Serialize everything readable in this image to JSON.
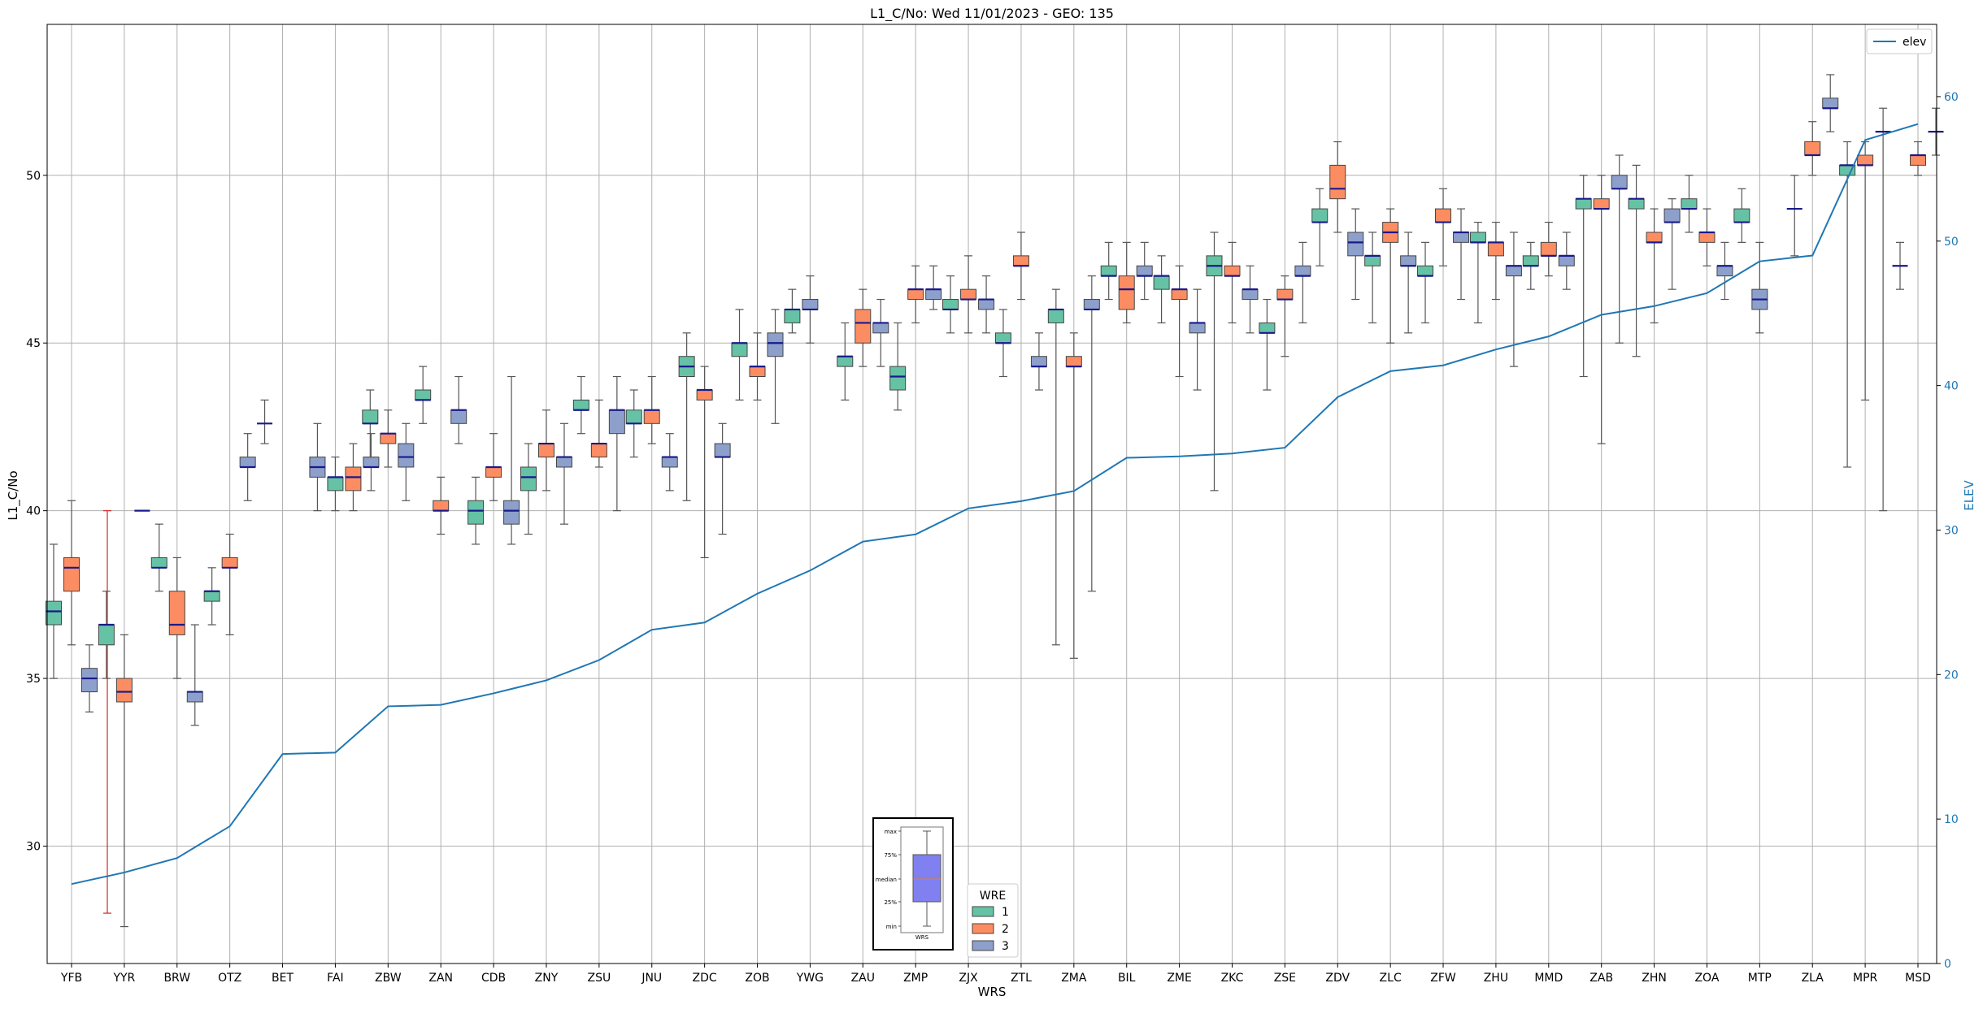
{
  "chart_data": {
    "type": "box",
    "title": "L1_C/No: Wed 11/01/2023 - GEO: 135",
    "xlabel": "WRS",
    "ylabel": "L1_C/No",
    "y2label": "ELEV",
    "ylim": [
      26.5,
      54.5
    ],
    "y2lim": [
      0,
      65
    ],
    "yticks": [
      30,
      35,
      40,
      45,
      50
    ],
    "y2ticks": [
      0,
      10,
      20,
      30,
      40,
      50,
      60
    ],
    "grid": true,
    "categories": [
      "YFB",
      "YYR",
      "BRW",
      "OTZ",
      "BET",
      "FAI",
      "ZBW",
      "ZAN",
      "CDB",
      "ZNY",
      "ZSU",
      "JNU",
      "ZDC",
      "ZOB",
      "YWG",
      "ZAU",
      "ZMP",
      "ZJX",
      "ZTL",
      "ZMA",
      "BIL",
      "ZME",
      "ZKC",
      "ZSE",
      "ZDV",
      "ZLC",
      "ZFW",
      "ZHU",
      "MMD",
      "ZAB",
      "ZHN",
      "ZOA",
      "MTP",
      "ZLA",
      "MPR",
      "MSD"
    ],
    "wre_colors": {
      "1": "#66c2a5",
      "2": "#fc8d62",
      "3": "#8da0cb"
    },
    "box_series": [
      {
        "cat": "YFB",
        "wre": 1,
        "min": 35.0,
        "q1": 36.6,
        "median": 37.0,
        "q3": 37.3,
        "max": 39.0
      },
      {
        "cat": "YFB",
        "wre": 2,
        "min": 36.0,
        "q1": 37.6,
        "median": 38.3,
        "q3": 38.6,
        "max": 40.3
      },
      {
        "cat": "YFB",
        "wre": 3,
        "min": 34.0,
        "q1": 34.6,
        "median": 35.0,
        "q3": 35.3,
        "max": 36.0
      },
      {
        "cat": "YFB",
        "wre": 2,
        "min": 28.0,
        "q1": 40.0,
        "median": 40.0,
        "q3": 40.0,
        "max": 40.0,
        "highlight": true
      },
      {
        "cat": "YYR",
        "wre": 1,
        "min": 35.0,
        "q1": 36.0,
        "median": 36.6,
        "q3": 36.6,
        "max": 37.6
      },
      {
        "cat": "YYR",
        "wre": 2,
        "min": 27.6,
        "q1": 34.3,
        "median": 34.6,
        "q3": 35.0,
        "max": 36.3
      },
      {
        "cat": "YYR",
        "wre": 3,
        "min": 40.0,
        "q1": 40.0,
        "median": 40.0,
        "q3": 40.0,
        "max": 40.0
      },
      {
        "cat": "BRW",
        "wre": 1,
        "min": 37.6,
        "q1": 38.3,
        "median": 38.3,
        "q3": 38.6,
        "max": 39.6
      },
      {
        "cat": "BRW",
        "wre": 2,
        "min": 35.0,
        "q1": 36.3,
        "median": 36.6,
        "q3": 37.6,
        "max": 38.6
      },
      {
        "cat": "BRW",
        "wre": 3,
        "min": 33.6,
        "q1": 34.3,
        "median": 34.6,
        "q3": 34.6,
        "max": 36.6
      },
      {
        "cat": "OTZ",
        "wre": 1,
        "min": 36.6,
        "q1": 37.3,
        "median": 37.6,
        "q3": 37.6,
        "max": 38.3
      },
      {
        "cat": "OTZ",
        "wre": 2,
        "min": 36.3,
        "q1": 38.3,
        "median": 38.3,
        "q3": 38.6,
        "max": 39.3
      },
      {
        "cat": "OTZ",
        "wre": 3,
        "min": 40.3,
        "q1": 41.3,
        "median": 41.3,
        "q3": 41.6,
        "max": 42.3
      },
      {
        "cat": "BET",
        "wre": 3,
        "min": 42.0,
        "q1": 42.6,
        "median": 42.6,
        "q3": 42.6,
        "max": 43.3
      },
      {
        "cat": "FAI",
        "wre": 3,
        "min": 40.0,
        "q1": 41.0,
        "median": 41.3,
        "q3": 41.6,
        "max": 42.6
      },
      {
        "cat": "FAI",
        "wre": 1,
        "min": 40.0,
        "q1": 40.6,
        "median": 41.0,
        "q3": 41.0,
        "max": 41.6
      },
      {
        "cat": "FAI",
        "wre": 2,
        "min": 40.0,
        "q1": 40.6,
        "median": 41.0,
        "q3": 41.3,
        "max": 42.0
      },
      {
        "cat": "FAI",
        "wre": 3,
        "min": 40.6,
        "q1": 41.3,
        "median": 41.3,
        "q3": 41.6,
        "max": 42.3
      },
      {
        "cat": "ZBW",
        "wre": 1,
        "min": 41.6,
        "q1": 42.6,
        "median": 42.6,
        "q3": 43.0,
        "max": 43.6
      },
      {
        "cat": "ZBW",
        "wre": 2,
        "min": 41.3,
        "q1": 42.0,
        "median": 42.3,
        "q3": 42.3,
        "max": 43.0
      },
      {
        "cat": "ZBW",
        "wre": 3,
        "min": 40.3,
        "q1": 41.3,
        "median": 41.6,
        "q3": 42.0,
        "max": 42.6
      },
      {
        "cat": "ZAN",
        "wre": 1,
        "min": 42.6,
        "q1": 43.3,
        "median": 43.3,
        "q3": 43.6,
        "max": 44.3
      },
      {
        "cat": "ZAN",
        "wre": 2,
        "min": 39.3,
        "q1": 40.0,
        "median": 40.0,
        "q3": 40.3,
        "max": 41.0
      },
      {
        "cat": "ZAN",
        "wre": 3,
        "min": 42.0,
        "q1": 42.6,
        "median": 43.0,
        "q3": 43.0,
        "max": 44.0
      },
      {
        "cat": "CDB",
        "wre": 1,
        "min": 39.0,
        "q1": 39.6,
        "median": 40.0,
        "q3": 40.3,
        "max": 41.0
      },
      {
        "cat": "CDB",
        "wre": 2,
        "min": 40.3,
        "q1": 41.0,
        "median": 41.3,
        "q3": 41.3,
        "max": 42.3
      },
      {
        "cat": "CDB",
        "wre": 3,
        "min": 39.0,
        "q1": 39.6,
        "median": 40.0,
        "q3": 40.3,
        "max": 44.0
      },
      {
        "cat": "ZNY",
        "wre": 1,
        "min": 39.3,
        "q1": 40.6,
        "median": 41.0,
        "q3": 41.3,
        "max": 42.0
      },
      {
        "cat": "ZNY",
        "wre": 2,
        "min": 40.6,
        "q1": 41.6,
        "median": 42.0,
        "q3": 42.0,
        "max": 43.0
      },
      {
        "cat": "ZNY",
        "wre": 3,
        "min": 39.6,
        "q1": 41.3,
        "median": 41.6,
        "q3": 41.6,
        "max": 42.6
      },
      {
        "cat": "ZSU",
        "wre": 1,
        "min": 42.3,
        "q1": 43.0,
        "median": 43.0,
        "q3": 43.3,
        "max": 44.0
      },
      {
        "cat": "ZSU",
        "wre": 2,
        "min": 41.3,
        "q1": 41.6,
        "median": 42.0,
        "q3": 42.0,
        "max": 43.3
      },
      {
        "cat": "ZSU",
        "wre": 3,
        "min": 40.0,
        "q1": 42.3,
        "median": 43.0,
        "q3": 43.0,
        "max": 44.0
      },
      {
        "cat": "JNU",
        "wre": 1,
        "min": 41.6,
        "q1": 42.6,
        "median": 42.6,
        "q3": 43.0,
        "max": 43.6
      },
      {
        "cat": "JNU",
        "wre": 2,
        "min": 42.0,
        "q1": 42.6,
        "median": 43.0,
        "q3": 43.0,
        "max": 44.0
      },
      {
        "cat": "JNU",
        "wre": 3,
        "min": 40.6,
        "q1": 41.3,
        "median": 41.6,
        "q3": 41.6,
        "max": 42.3
      },
      {
        "cat": "ZDC",
        "wre": 1,
        "min": 40.3,
        "q1": 44.0,
        "median": 44.3,
        "q3": 44.6,
        "max": 45.3
      },
      {
        "cat": "ZDC",
        "wre": 2,
        "min": 38.6,
        "q1": 43.3,
        "median": 43.6,
        "q3": 43.6,
        "max": 44.3
      },
      {
        "cat": "ZDC",
        "wre": 3,
        "min": 39.3,
        "q1": 41.6,
        "median": 41.6,
        "q3": 42.0,
        "max": 42.6
      },
      {
        "cat": "ZOB",
        "wre": 1,
        "min": 43.3,
        "q1": 44.6,
        "median": 45.0,
        "q3": 45.0,
        "max": 46.0
      },
      {
        "cat": "ZOB",
        "wre": 2,
        "min": 43.3,
        "q1": 44.0,
        "median": 44.3,
        "q3": 44.3,
        "max": 45.3
      },
      {
        "cat": "ZOB",
        "wre": 3,
        "min": 42.6,
        "q1": 44.6,
        "median": 45.0,
        "q3": 45.3,
        "max": 46.0
      },
      {
        "cat": "YWG",
        "wre": 1,
        "min": 45.3,
        "q1": 45.6,
        "median": 46.0,
        "q3": 46.0,
        "max": 46.6
      },
      {
        "cat": "YWG",
        "wre": 3,
        "min": 45.0,
        "q1": 46.0,
        "median": 46.0,
        "q3": 46.3,
        "max": 47.0
      },
      {
        "cat": "ZAU",
        "wre": 1,
        "min": 43.3,
        "q1": 44.3,
        "median": 44.6,
        "q3": 44.6,
        "max": 45.6
      },
      {
        "cat": "ZAU",
        "wre": 2,
        "min": 44.3,
        "q1": 45.0,
        "median": 45.6,
        "q3": 46.0,
        "max": 46.6
      },
      {
        "cat": "ZAU",
        "wre": 3,
        "min": 44.3,
        "q1": 45.3,
        "median": 45.6,
        "q3": 45.6,
        "max": 46.3
      },
      {
        "cat": "ZMP",
        "wre": 1,
        "min": 43.0,
        "q1": 43.6,
        "median": 44.0,
        "q3": 44.3,
        "max": 45.6
      },
      {
        "cat": "ZMP",
        "wre": 2,
        "min": 45.6,
        "q1": 46.3,
        "median": 46.6,
        "q3": 46.6,
        "max": 47.3
      },
      {
        "cat": "ZMP",
        "wre": 3,
        "min": 46.0,
        "q1": 46.3,
        "median": 46.6,
        "q3": 46.6,
        "max": 47.3
      },
      {
        "cat": "ZJX",
        "wre": 1,
        "min": 45.3,
        "q1": 46.0,
        "median": 46.0,
        "q3": 46.3,
        "max": 47.0
      },
      {
        "cat": "ZJX",
        "wre": 2,
        "min": 45.3,
        "q1": 46.3,
        "median": 46.3,
        "q3": 46.6,
        "max": 47.6
      },
      {
        "cat": "ZJX",
        "wre": 3,
        "min": 45.3,
        "q1": 46.0,
        "median": 46.3,
        "q3": 46.3,
        "max": 47.0
      },
      {
        "cat": "ZTL",
        "wre": 1,
        "min": 44.0,
        "q1": 45.0,
        "median": 45.0,
        "q3": 45.3,
        "max": 46.0
      },
      {
        "cat": "ZTL",
        "wre": 2,
        "min": 46.3,
        "q1": 47.3,
        "median": 47.3,
        "q3": 47.6,
        "max": 48.3
      },
      {
        "cat": "ZTL",
        "wre": 3,
        "min": 43.6,
        "q1": 44.3,
        "median": 44.3,
        "q3": 44.6,
        "max": 45.3
      },
      {
        "cat": "ZMA",
        "wre": 1,
        "min": 36.0,
        "q1": 45.6,
        "median": 46.0,
        "q3": 46.0,
        "max": 46.6
      },
      {
        "cat": "ZMA",
        "wre": 2,
        "min": 35.6,
        "q1": 44.3,
        "median": 44.3,
        "q3": 44.6,
        "max": 45.3
      },
      {
        "cat": "ZMA",
        "wre": 3,
        "min": 37.6,
        "q1": 46.0,
        "median": 46.0,
        "q3": 46.3,
        "max": 47.0
      },
      {
        "cat": "BIL",
        "wre": 1,
        "min": 46.3,
        "q1": 47.0,
        "median": 47.0,
        "q3": 47.3,
        "max": 48.0
      },
      {
        "cat": "BIL",
        "wre": 2,
        "min": 45.6,
        "q1": 46.0,
        "median": 46.6,
        "q3": 47.0,
        "max": 48.0
      },
      {
        "cat": "BIL",
        "wre": 3,
        "min": 46.3,
        "q1": 47.0,
        "median": 47.0,
        "q3": 47.3,
        "max": 48.0
      },
      {
        "cat": "ZME",
        "wre": 1,
        "min": 45.6,
        "q1": 46.6,
        "median": 47.0,
        "q3": 47.0,
        "max": 47.6
      },
      {
        "cat": "ZME",
        "wre": 2,
        "min": 44.0,
        "q1": 46.3,
        "median": 46.6,
        "q3": 46.6,
        "max": 47.3
      },
      {
        "cat": "ZME",
        "wre": 3,
        "min": 43.6,
        "q1": 45.3,
        "median": 45.6,
        "q3": 45.6,
        "max": 46.6
      },
      {
        "cat": "ZKC",
        "wre": 1,
        "min": 40.6,
        "q1": 47.0,
        "median": 47.3,
        "q3": 47.6,
        "max": 48.3
      },
      {
        "cat": "ZKC",
        "wre": 2,
        "min": 45.6,
        "q1": 47.0,
        "median": 47.0,
        "q3": 47.3,
        "max": 48.0
      },
      {
        "cat": "ZKC",
        "wre": 3,
        "min": 45.3,
        "q1": 46.3,
        "median": 46.6,
        "q3": 46.6,
        "max": 47.3
      },
      {
        "cat": "ZSE",
        "wre": 1,
        "min": 43.6,
        "q1": 45.3,
        "median": 45.3,
        "q3": 45.6,
        "max": 46.3
      },
      {
        "cat": "ZSE",
        "wre": 2,
        "min": 44.6,
        "q1": 46.3,
        "median": 46.3,
        "q3": 46.6,
        "max": 47.0
      },
      {
        "cat": "ZSE",
        "wre": 3,
        "min": 45.6,
        "q1": 47.0,
        "median": 47.0,
        "q3": 47.3,
        "max": 48.0
      },
      {
        "cat": "ZDV",
        "wre": 1,
        "min": 47.3,
        "q1": 48.6,
        "median": 48.6,
        "q3": 49.0,
        "max": 49.6
      },
      {
        "cat": "ZDV",
        "wre": 2,
        "min": 48.3,
        "q1": 49.3,
        "median": 49.6,
        "q3": 50.3,
        "max": 51.0
      },
      {
        "cat": "ZDV",
        "wre": 3,
        "min": 46.3,
        "q1": 47.6,
        "median": 48.0,
        "q3": 48.3,
        "max": 49.0
      },
      {
        "cat": "ZLC",
        "wre": 1,
        "min": 45.6,
        "q1": 47.3,
        "median": 47.6,
        "q3": 47.6,
        "max": 48.3
      },
      {
        "cat": "ZLC",
        "wre": 2,
        "min": 45.0,
        "q1": 48.0,
        "median": 48.3,
        "q3": 48.6,
        "max": 49.0
      },
      {
        "cat": "ZLC",
        "wre": 3,
        "min": 45.3,
        "q1": 47.3,
        "median": 47.3,
        "q3": 47.6,
        "max": 48.3
      },
      {
        "cat": "ZFW",
        "wre": 1,
        "min": 45.6,
        "q1": 47.0,
        "median": 47.0,
        "q3": 47.3,
        "max": 48.0
      },
      {
        "cat": "ZFW",
        "wre": 2,
        "min": 47.3,
        "q1": 48.6,
        "median": 48.6,
        "q3": 49.0,
        "max": 49.6
      },
      {
        "cat": "ZFW",
        "wre": 3,
        "min": 46.3,
        "q1": 48.0,
        "median": 48.3,
        "q3": 48.3,
        "max": 49.0
      },
      {
        "cat": "ZHU",
        "wre": 1,
        "min": 45.6,
        "q1": 48.0,
        "median": 48.0,
        "q3": 48.3,
        "max": 48.6
      },
      {
        "cat": "ZHU",
        "wre": 2,
        "min": 46.3,
        "q1": 47.6,
        "median": 48.0,
        "q3": 48.0,
        "max": 48.6
      },
      {
        "cat": "ZHU",
        "wre": 3,
        "min": 44.3,
        "q1": 47.0,
        "median": 47.3,
        "q3": 47.3,
        "max": 48.3
      },
      {
        "cat": "MMD",
        "wre": 1,
        "min": 46.6,
        "q1": 47.3,
        "median": 47.3,
        "q3": 47.6,
        "max": 48.0
      },
      {
        "cat": "MMD",
        "wre": 2,
        "min": 47.0,
        "q1": 47.6,
        "median": 47.6,
        "q3": 48.0,
        "max": 48.6
      },
      {
        "cat": "MMD",
        "wre": 3,
        "min": 46.6,
        "q1": 47.3,
        "median": 47.6,
        "q3": 47.6,
        "max": 48.3
      },
      {
        "cat": "ZAB",
        "wre": 1,
        "min": 44.0,
        "q1": 49.0,
        "median": 49.3,
        "q3": 49.3,
        "max": 50.0
      },
      {
        "cat": "ZAB",
        "wre": 2,
        "min": 42.0,
        "q1": 49.0,
        "median": 49.0,
        "q3": 49.3,
        "max": 50.0
      },
      {
        "cat": "ZAB",
        "wre": 3,
        "min": 45.0,
        "q1": 49.6,
        "median": 49.6,
        "q3": 50.0,
        "max": 50.6
      },
      {
        "cat": "ZHN",
        "wre": 1,
        "min": 44.6,
        "q1": 49.0,
        "median": 49.3,
        "q3": 49.3,
        "max": 50.3
      },
      {
        "cat": "ZHN",
        "wre": 2,
        "min": 45.6,
        "q1": 48.0,
        "median": 48.0,
        "q3": 48.3,
        "max": 49.0
      },
      {
        "cat": "ZHN",
        "wre": 3,
        "min": 46.6,
        "q1": 48.6,
        "median": 48.6,
        "q3": 49.0,
        "max": 49.3
      },
      {
        "cat": "ZOA",
        "wre": 1,
        "min": 48.3,
        "q1": 49.0,
        "median": 49.0,
        "q3": 49.3,
        "max": 50.0
      },
      {
        "cat": "ZOA",
        "wre": 2,
        "min": 47.3,
        "q1": 48.0,
        "median": 48.3,
        "q3": 48.3,
        "max": 49.0
      },
      {
        "cat": "ZOA",
        "wre": 3,
        "min": 46.3,
        "q1": 47.0,
        "median": 47.3,
        "q3": 47.3,
        "max": 48.0
      },
      {
        "cat": "MTP",
        "wre": 1,
        "min": 48.0,
        "q1": 48.6,
        "median": 48.6,
        "q3": 49.0,
        "max": 49.6
      },
      {
        "cat": "MTP",
        "wre": 3,
        "min": 45.3,
        "q1": 46.0,
        "median": 46.3,
        "q3": 46.6,
        "max": 48.0
      },
      {
        "cat": "ZLA",
        "wre": 1,
        "min": 47.6,
        "q1": 49.0,
        "median": 49.0,
        "q3": 49.0,
        "max": 50.0
      },
      {
        "cat": "ZLA",
        "wre": 2,
        "min": 50.0,
        "q1": 50.6,
        "median": 50.6,
        "q3": 51.0,
        "max": 51.6
      },
      {
        "cat": "ZLA",
        "wre": 3,
        "min": 51.3,
        "q1": 52.0,
        "median": 52.0,
        "q3": 52.3,
        "max": 53.0
      },
      {
        "cat": "MPR",
        "wre": 1,
        "min": 41.3,
        "q1": 50.0,
        "median": 50.3,
        "q3": 50.3,
        "max": 51.0
      },
      {
        "cat": "MPR",
        "wre": 2,
        "min": 43.3,
        "q1": 50.3,
        "median": 50.3,
        "q3": 50.6,
        "max": 51.0
      },
      {
        "cat": "MPR",
        "wre": 3,
        "min": 40.0,
        "q1": 51.3,
        "median": 51.3,
        "q3": 51.3,
        "max": 52.0
      },
      {
        "cat": "MSD",
        "wre": 3,
        "min": 46.6,
        "q1": 47.3,
        "median": 47.3,
        "q3": 47.3,
        "max": 48.0
      },
      {
        "cat": "MSD",
        "wre": 2,
        "min": 50.0,
        "q1": 50.3,
        "median": 50.6,
        "q3": 50.6,
        "max": 51.0
      },
      {
        "cat": "MSD",
        "wre": 3,
        "min": 50.6,
        "q1": 51.3,
        "median": 51.3,
        "q3": 51.3,
        "max": 52.0
      }
    ],
    "elev_series": {
      "name": "elev",
      "color": "#1f77b4",
      "values": [
        5.5,
        6.3,
        7.3,
        9.5,
        14.5,
        14.6,
        17.8,
        17.9,
        18.7,
        19.6,
        21.0,
        23.1,
        23.6,
        25.6,
        27.2,
        29.2,
        29.7,
        31.5,
        32.0,
        32.7,
        35.0,
        35.1,
        35.3,
        35.7,
        39.2,
        41.0,
        41.4,
        42.5,
        43.4,
        44.9,
        45.5,
        46.4,
        48.6,
        49.0,
        57.0,
        58.1
      ]
    },
    "legend_elev": {
      "label": "elev",
      "placement": "upper right"
    },
    "legend_wre": {
      "title": "WRE",
      "labels": [
        "1",
        "2",
        "3"
      ],
      "placement": "lower center"
    },
    "inset_key": {
      "labels": [
        "max",
        "75%",
        "median",
        "25%",
        "min"
      ],
      "xlabel": "WRS",
      "box_color": "#8080f0"
    }
  }
}
